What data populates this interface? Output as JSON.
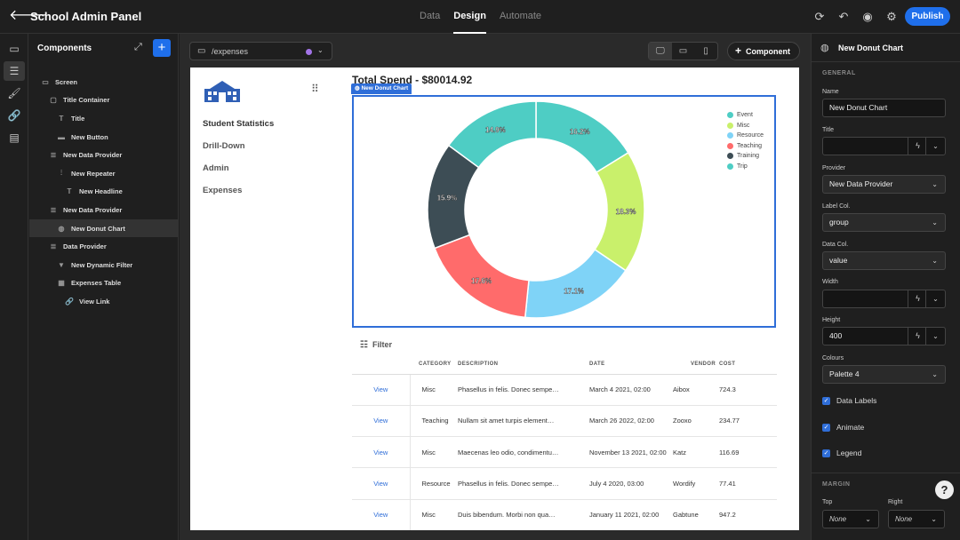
{
  "app": {
    "title": "School Admin Panel",
    "publish_label": "Publish"
  },
  "top_tabs": [
    {
      "label": "Data"
    },
    {
      "label": "Design"
    },
    {
      "label": "Automate"
    }
  ],
  "components_panel": {
    "header": "Components",
    "tree": [
      {
        "label": "Screen",
        "icon": "screen-icon",
        "level": 0
      },
      {
        "label": "Title Container",
        "icon": "container-icon",
        "level": 1
      },
      {
        "label": "Title",
        "icon": "text-icon",
        "level": 2
      },
      {
        "label": "New Button",
        "icon": "button-icon",
        "level": 2
      },
      {
        "label": "New Data Provider",
        "icon": "database-icon",
        "level": 1
      },
      {
        "label": "New Repeater",
        "icon": "repeater-icon",
        "level": 2
      },
      {
        "label": "New Headline",
        "icon": "text-icon",
        "level": 3
      },
      {
        "label": "New Data Provider",
        "icon": "database-icon",
        "level": 1
      },
      {
        "label": "New Donut Chart",
        "icon": "donut-icon",
        "level": 2,
        "selected": true
      },
      {
        "label": "Data Provider",
        "icon": "database-icon",
        "level": 1
      },
      {
        "label": "New Dynamic Filter",
        "icon": "filter-icon",
        "level": 2
      },
      {
        "label": "Expenses Table",
        "icon": "table-icon",
        "level": 2
      },
      {
        "label": "View Link",
        "icon": "link-icon",
        "level": 3
      }
    ]
  },
  "canvas": {
    "route": "/expenses",
    "route_dot_color": "#a374e8",
    "add_component_label": "Component"
  },
  "page": {
    "nav": [
      "Student Statistics",
      "Drill-Down",
      "Admin",
      "Expenses"
    ],
    "total_spend": "Total Spend - $80014.92",
    "chart_badge": "New Donut Chart",
    "filter_label": "Filter"
  },
  "chart_data": {
    "type": "pie",
    "donut": true,
    "legend_position": "top-right",
    "data_labels": true,
    "series": [
      {
        "name": "Event",
        "value": 16.2,
        "label": "16.2%",
        "color": "#4ecdc4"
      },
      {
        "name": "Misc",
        "value": 18.3,
        "label": "18.3%",
        "color": "#c9f06b"
      },
      {
        "name": "Resource",
        "value": 17.1,
        "label": "17.1%",
        "color": "#7fd3f7"
      },
      {
        "name": "Teaching",
        "value": 17.6,
        "label": "17.6%",
        "color": "#ff6b6b"
      },
      {
        "name": "Training",
        "value": 15.9,
        "label": "15.9%",
        "color": "#3d4d55"
      },
      {
        "name": "Trip",
        "value": 14.9,
        "label": "14.9%",
        "color": "#4ecdc4"
      }
    ]
  },
  "table": {
    "headers": [
      "",
      "CATEGORY",
      "DESCRIPTION",
      "DATE",
      "VENDOR",
      "COST"
    ],
    "rows": [
      {
        "link": "View",
        "category": "Misc",
        "description": "Phasellus in felis. Donec sempe…",
        "date": "March 4 2021, 02:00",
        "vendor": "Aibox",
        "cost": "724.3"
      },
      {
        "link": "View",
        "category": "Teaching",
        "description": "Nullam sit amet turpis element…",
        "date": "March 26 2022, 02:00",
        "vendor": "Zooxo",
        "cost": "234.77"
      },
      {
        "link": "View",
        "category": "Misc",
        "description": "Maecenas leo odio, condimentu…",
        "date": "November 13 2021, 02:00",
        "vendor": "Katz",
        "cost": "116.69"
      },
      {
        "link": "View",
        "category": "Resource",
        "description": "Phasellus in felis. Donec sempe…",
        "date": "July 4 2020, 03:00",
        "vendor": "Wordify",
        "cost": "77.41"
      },
      {
        "link": "View",
        "category": "Misc",
        "description": "Duis bibendum. Morbi non qua…",
        "date": "January 11 2021, 02:00",
        "vendor": "Gabtune",
        "cost": "947.2"
      }
    ]
  },
  "props": {
    "title": "New Donut Chart",
    "section_general": "GENERAL",
    "name_label": "Name",
    "name_value": "New Donut Chart",
    "title_label": "Title",
    "title_value": "",
    "provider_label": "Provider",
    "provider_value": "New Data Provider",
    "label_col_label": "Label Col.",
    "label_col_value": "group",
    "data_col_label": "Data Col.",
    "data_col_value": "value",
    "width_label": "Width",
    "width_value": "",
    "height_label": "Height",
    "height_value": "400",
    "colours_label": "Colours",
    "colours_value": "Palette 4",
    "data_labels": "Data Labels",
    "animate": "Animate",
    "legend": "Legend",
    "section_margin": "MARGIN",
    "top_label": "Top",
    "top_value": "None",
    "right_label": "Right",
    "right_value": "None"
  }
}
